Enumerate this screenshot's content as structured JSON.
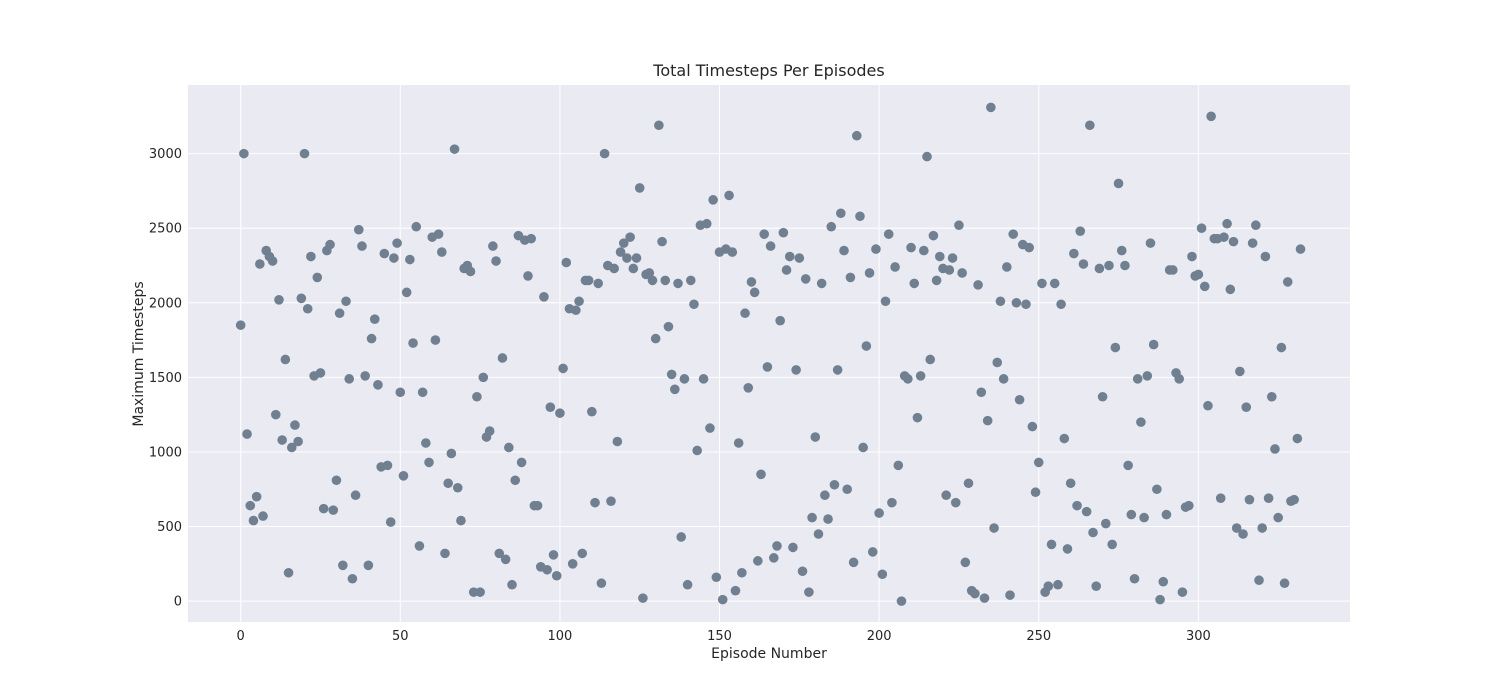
{
  "chart_data": {
    "type": "scatter",
    "title": "Total Timesteps Per Episodes",
    "xlabel": "Episode Number",
    "ylabel": "Maximum Timesteps",
    "xlim": [
      -16.5,
      347.5
    ],
    "ylim": [
      -140,
      3460
    ],
    "xticks": [
      0,
      50,
      100,
      150,
      200,
      250,
      300
    ],
    "yticks": [
      0,
      500,
      1000,
      1500,
      2000,
      2500,
      3000
    ],
    "grid": true,
    "colors": {
      "plot_background": "#eaeaf2",
      "grid": "#ffffff",
      "point": "#708090"
    },
    "series": [
      {
        "x": [
          0,
          1,
          2,
          3,
          4,
          5,
          6,
          7,
          8,
          9,
          10,
          11,
          12,
          13,
          14,
          15,
          16,
          17,
          18,
          19,
          20,
          21,
          22,
          23,
          24,
          25,
          26,
          27,
          28,
          29,
          30,
          31,
          32,
          33,
          34,
          35,
          36,
          37,
          38,
          39,
          40,
          41,
          42,
          43,
          44,
          45,
          46,
          47,
          48,
          49,
          50,
          51,
          52,
          53,
          54,
          55,
          56,
          57,
          58,
          59,
          60,
          61,
          62,
          63,
          64,
          65,
          66,
          67,
          68,
          69,
          70,
          71,
          72,
          73,
          74,
          75,
          76,
          77,
          78,
          79,
          80,
          81,
          82,
          83,
          84,
          85,
          86,
          87,
          88,
          89,
          90,
          91,
          92,
          93,
          94,
          95,
          96,
          97,
          98,
          99,
          100,
          101,
          102,
          103,
          104,
          105,
          106,
          107,
          108,
          109,
          110,
          111,
          112,
          113,
          114,
          115,
          116,
          117,
          118,
          119,
          120,
          121,
          122,
          123,
          124,
          125,
          126,
          127,
          128,
          129,
          130,
          131,
          132,
          133,
          134,
          135,
          136,
          137,
          138,
          139,
          140,
          141,
          142,
          143,
          144,
          145,
          146,
          147,
          148,
          149,
          150,
          151,
          152,
          153,
          154,
          155,
          156,
          157,
          158,
          159,
          160,
          161,
          162,
          163,
          164,
          165,
          166,
          167,
          168,
          169,
          170,
          171,
          172,
          173,
          174,
          175,
          176,
          177,
          178,
          179,
          180,
          181,
          182,
          183,
          184,
          185,
          186,
          187,
          188,
          189,
          190,
          191,
          192,
          193,
          194,
          195,
          196,
          197,
          198,
          199,
          200,
          201,
          202,
          203,
          204,
          205,
          206,
          207,
          208,
          209,
          210,
          211,
          212,
          213,
          214,
          215,
          216,
          217,
          218,
          219,
          220,
          221,
          222,
          223,
          224,
          225,
          226,
          227,
          228,
          229,
          230,
          231,
          232,
          233,
          234,
          235,
          236,
          237,
          238,
          239,
          240,
          241,
          242,
          243,
          244,
          245,
          246,
          247,
          248,
          249,
          250,
          251,
          252,
          253,
          254,
          255,
          256,
          257,
          258,
          259,
          260,
          261,
          262,
          263,
          264,
          265,
          266,
          267,
          268,
          269,
          270,
          271,
          272,
          273,
          274,
          275,
          276,
          277,
          278,
          279,
          280,
          281,
          282,
          283,
          284,
          285,
          286,
          287,
          288,
          289,
          290,
          291,
          292,
          293,
          294,
          295,
          296,
          297,
          298,
          299,
          300,
          301,
          302,
          303,
          304,
          305,
          306,
          307,
          308,
          309,
          310,
          311,
          312,
          313,
          314,
          315,
          316,
          317,
          318,
          319,
          320,
          321,
          322,
          323,
          324,
          325,
          326,
          327,
          328,
          329,
          330,
          331,
          332
        ],
        "y": [
          1850,
          3000,
          1120,
          640,
          540,
          700,
          2260,
          570,
          2350,
          2310,
          2280,
          1250,
          2020,
          1080,
          1620,
          190,
          1030,
          1180,
          1070,
          2030,
          3000,
          1960,
          2310,
          1510,
          2170,
          1530,
          620,
          2350,
          2390,
          610,
          810,
          1930,
          240,
          2010,
          1490,
          150,
          710,
          2490,
          2380,
          1510,
          240,
          1760,
          1890,
          1450,
          900,
          2330,
          910,
          530,
          2300,
          2400,
          1400,
          840,
          2070,
          2290,
          1730,
          2510,
          370,
          1400,
          1060,
          930,
          2440,
          1750,
          2460,
          2340,
          320,
          790,
          990,
          3030,
          760,
          540,
          2230,
          2250,
          2210,
          60,
          1370,
          60,
          1500,
          1100,
          1140,
          2380,
          2280,
          320,
          1630,
          280,
          1030,
          110,
          810,
          2450,
          930,
          2420,
          2180,
          2430,
          640,
          640,
          230,
          2040,
          210,
          1300,
          310,
          170,
          1260,
          1560,
          2270,
          1960,
          250,
          1950,
          2010,
          320,
          2150,
          2150,
          1270,
          660,
          2130,
          120,
          3000,
          2250,
          670,
          2230,
          1070,
          2340,
          2400,
          2300,
          2440,
          2230,
          2300,
          2770,
          20,
          2190,
          2200,
          2150,
          1760,
          3190,
          2410,
          2150,
          1840,
          1520,
          1420,
          2130,
          430,
          1490,
          110,
          2150,
          1990,
          1010,
          2520,
          1490,
          2530,
          1160,
          2690,
          160,
          2340,
          10,
          2360,
          2720,
          2340,
          70,
          1060,
          190,
          1930,
          1430,
          2140,
          2070,
          270,
          850,
          2460,
          1570,
          2380,
          290,
          370,
          1880,
          2470,
          2220,
          2310,
          360,
          1550,
          2300,
          200,
          2160,
          60,
          560,
          1100,
          450,
          2130,
          710,
          550,
          2510,
          780,
          1550,
          2600,
          2350,
          750,
          2170,
          260,
          3120,
          2580,
          1030,
          1710,
          2200,
          330,
          2360,
          590,
          180,
          2010,
          2460,
          660,
          2240,
          910,
          0,
          1510,
          1490,
          2370,
          2130,
          1230,
          1510,
          2350,
          2980,
          1620,
          2450,
          2150,
          2310,
          2230,
          710,
          2220,
          2300,
          660,
          2520,
          2200,
          260,
          790,
          70,
          50,
          2120,
          1400,
          20,
          1210,
          3310,
          490,
          1600,
          2010,
          1490,
          2240,
          40,
          2460,
          2000,
          1350,
          2390,
          1990,
          2370,
          1170,
          730,
          930,
          2130,
          60,
          100,
          380,
          2130,
          110,
          1990,
          1090,
          350,
          790,
          2330,
          640,
          2480,
          2260,
          600,
          3190,
          460,
          100,
          2230,
          1370,
          520,
          2250,
          380,
          1700,
          2800,
          2350,
          2250,
          910,
          580,
          150,
          1490,
          1200,
          560,
          1510,
          2400,
          1720,
          750,
          10,
          130,
          580,
          2220,
          2220,
          1530,
          1490,
          60,
          630,
          640,
          2310,
          2180,
          2190,
          2500,
          2110,
          1310,
          3250,
          2430,
          2430,
          690,
          2440,
          2530,
          2090,
          2410,
          490,
          1540,
          450,
          1300,
          680,
          2400,
          2520,
          140,
          490,
          2310,
          690,
          1370,
          1020,
          560,
          1700,
          120,
          2140,
          670,
          680,
          1090,
          2360
        ]
      }
    ]
  }
}
